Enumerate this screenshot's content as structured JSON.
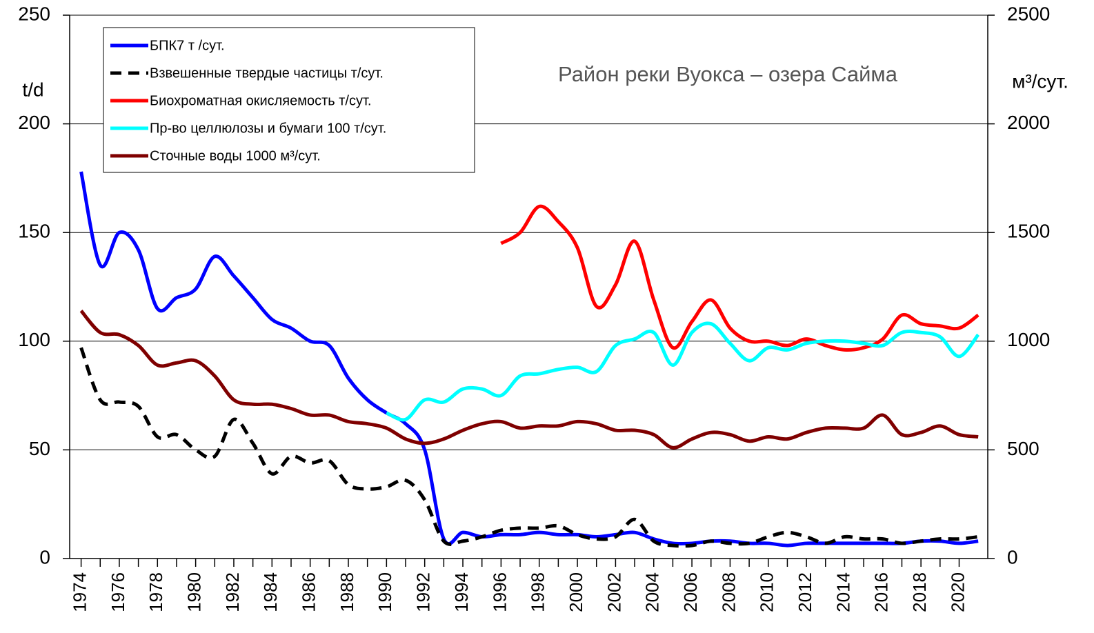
{
  "chart_data": {
    "type": "line",
    "title": "Район реки Вуокса – озера Сайма",
    "y_label": "t/d",
    "y2_label": "м³/сут.",
    "x": [
      1974,
      1975,
      1976,
      1977,
      1978,
      1979,
      1980,
      1981,
      1982,
      1983,
      1984,
      1985,
      1986,
      1987,
      1988,
      1989,
      1990,
      1991,
      1992,
      1993,
      1994,
      1995,
      1996,
      1997,
      1998,
      1999,
      2000,
      2001,
      2002,
      2003,
      2004,
      2005,
      2006,
      2007,
      2008,
      2009,
      2010,
      2011,
      2012,
      2013,
      2014,
      2015,
      2016,
      2017,
      2018,
      2019,
      2020,
      2021
    ],
    "xlim": [
      1973.4,
      2021.5
    ],
    "xticks": [
      1974,
      1976,
      1978,
      1980,
      1982,
      1984,
      1986,
      1988,
      1990,
      1992,
      1994,
      1996,
      1998,
      2000,
      2002,
      2004,
      2006,
      2008,
      2010,
      2012,
      2014,
      2016,
      2018,
      2020
    ],
    "ylim": [
      0,
      250
    ],
    "yticks": [
      0,
      50,
      100,
      150,
      200,
      250
    ],
    "y2lim": [
      0,
      2500
    ],
    "y2ticks": [
      0,
      500,
      1000,
      1500,
      2000,
      2500
    ],
    "grid": true,
    "legend": "upper left",
    "series": [
      {
        "name": "БПК7 т /сут.",
        "color": "#0000ff",
        "values": [
          178,
          135,
          150,
          142,
          115,
          120,
          124,
          139,
          130,
          120,
          110,
          106,
          100,
          98,
          83,
          73,
          67,
          62,
          50,
          9,
          12,
          10,
          11,
          11,
          12,
          11,
          11,
          10,
          11,
          12,
          9,
          7,
          7,
          8,
          8,
          7,
          7,
          6,
          7,
          7,
          7,
          7,
          7,
          7,
          8,
          8,
          7,
          8
        ]
      },
      {
        "name": "Взвешенные твердые частицы т/сут.",
        "color": "#000000",
        "dashed": true,
        "values": [
          97,
          73,
          72,
          70,
          56,
          57,
          50,
          47,
          64,
          53,
          39,
          47,
          44,
          45,
          34,
          32,
          33,
          36,
          27,
          8,
          8,
          10,
          13,
          14,
          14,
          15,
          11,
          9,
          10,
          18,
          8,
          6,
          6,
          8,
          7,
          7,
          10,
          12,
          10,
          7,
          10,
          9,
          9,
          7,
          8,
          9,
          9,
          10
        ]
      },
      {
        "name": "Биохроматная окисляемость т/сут.",
        "color": "#ff0000",
        "values": [
          null,
          null,
          null,
          null,
          null,
          null,
          null,
          null,
          null,
          null,
          null,
          null,
          null,
          null,
          null,
          null,
          null,
          null,
          null,
          null,
          null,
          null,
          145,
          150,
          162,
          155,
          143,
          116,
          126,
          146,
          119,
          97,
          109,
          119,
          106,
          100,
          100,
          98,
          101,
          98,
          96,
          97,
          101,
          112,
          108,
          107,
          106,
          112
        ]
      },
      {
        "name": "Пр-во целлюлозы и бумаги 100 т/сут.",
        "color": "#00ffff",
        "values": [
          null,
          null,
          null,
          null,
          null,
          null,
          null,
          null,
          null,
          null,
          null,
          null,
          null,
          null,
          null,
          null,
          67,
          64,
          73,
          72,
          78,
          78,
          75,
          84,
          85,
          87,
          88,
          86,
          98,
          101,
          104,
          89,
          104,
          108,
          99,
          91,
          97,
          96,
          99,
          100,
          100,
          99,
          98,
          104,
          104,
          102,
          93,
          103
        ]
      },
      {
        "name": "Сточные воды 1000 м³/сут.",
        "color": "#7f0000",
        "values": [
          114,
          104,
          103,
          98,
          89,
          90,
          91,
          84,
          73,
          71,
          71,
          69,
          66,
          66,
          63,
          62,
          60,
          55,
          53,
          55,
          59,
          62,
          63,
          60,
          61,
          61,
          63,
          62,
          59,
          59,
          57,
          51,
          55,
          58,
          57,
          54,
          56,
          55,
          58,
          60,
          60,
          60,
          66,
          57,
          58,
          61,
          57,
          56
        ]
      }
    ]
  }
}
